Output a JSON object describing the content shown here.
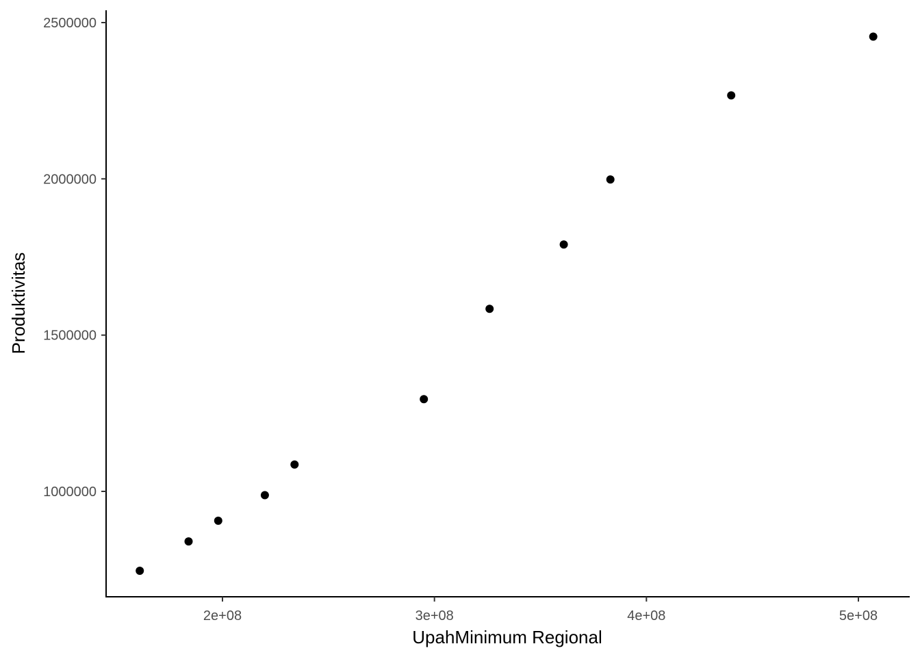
{
  "chart_data": {
    "type": "scatter",
    "title": "",
    "xlabel": "UpahMinimum Regional",
    "ylabel": "Produktivitas",
    "x_ticks": [
      200000000.0,
      300000000.0,
      400000000.0,
      500000000.0
    ],
    "x_tick_labels": [
      "2e+08",
      "3e+08",
      "4e+08",
      "5e+08"
    ],
    "y_ticks": [
      1000000,
      1500000,
      2000000,
      2500000
    ],
    "y_tick_labels": [
      "1000000",
      "1500000",
      "2000000",
      "2500000"
    ],
    "xlim": [
      145000000,
      525000000
    ],
    "ylim": [
      665000000,
      2540000
    ],
    "grid": false,
    "legend": "none",
    "point_color": "#000000",
    "points": [
      {
        "x": 161000000,
        "y": 746000
      },
      {
        "x": 184000000,
        "y": 840000
      },
      {
        "x": 198000000,
        "y": 906000
      },
      {
        "x": 220000000,
        "y": 988000
      },
      {
        "x": 234000000,
        "y": 1086000
      },
      {
        "x": 295000000,
        "y": 1295000
      },
      {
        "x": 326000000,
        "y": 1584000
      },
      {
        "x": 361000000,
        "y": 1790000
      },
      {
        "x": 383000000,
        "y": 1998000
      },
      {
        "x": 440000000,
        "y": 2267000
      },
      {
        "x": 507000000,
        "y": 2455000
      }
    ]
  }
}
